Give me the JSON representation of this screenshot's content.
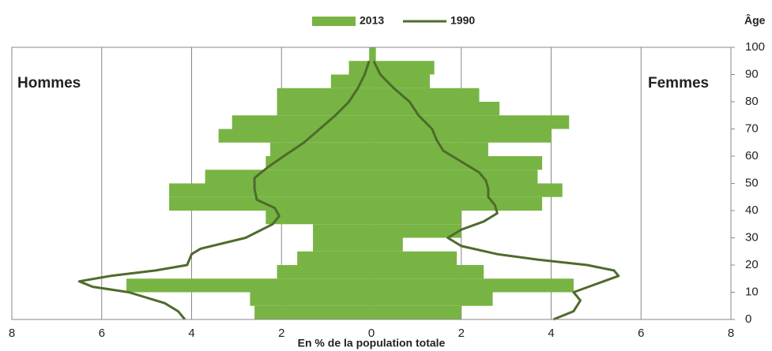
{
  "chart_data": {
    "type": "pyramid",
    "left_label": "Hommes",
    "right_label": "Femmes",
    "xlabel": "En % de la population totale",
    "ylabel": "Âge",
    "xlim": [
      -8,
      8
    ],
    "xticks": [
      {
        "value": -8,
        "label": "8"
      },
      {
        "value": -6,
        "label": "6"
      },
      {
        "value": -4,
        "label": "4"
      },
      {
        "value": -2,
        "label": "2"
      },
      0,
      2,
      4,
      6,
      8
    ],
    "ylim": [
      0,
      100
    ],
    "yticks": [
      0,
      10,
      20,
      30,
      40,
      50,
      60,
      70,
      80,
      90,
      100
    ],
    "grid": true,
    "bars": {
      "name": "2013",
      "color": "#78b444",
      "bins": [
        0,
        5,
        10,
        15,
        20,
        25,
        30,
        35,
        40,
        45,
        50,
        55,
        60,
        65,
        70,
        75,
        80,
        85,
        90,
        95,
        100
      ],
      "men": [
        -2.6,
        -2.7,
        -5.45,
        -2.1,
        -1.65,
        -1.3,
        -1.3,
        -2.35,
        -4.5,
        -4.5,
        -3.7,
        -2.35,
        -2.25,
        -3.4,
        -3.1,
        -2.1,
        -2.1,
        -0.9,
        -0.5,
        -0.05
      ],
      "women": [
        2.0,
        2.7,
        4.5,
        2.5,
        1.9,
        0.7,
        2.0,
        2.0,
        3.8,
        4.25,
        3.7,
        3.8,
        2.6,
        4.0,
        4.4,
        2.85,
        2.4,
        1.3,
        1.4,
        0.1
      ]
    },
    "line": {
      "name": "1990",
      "color": "#4e6b2c",
      "men_ages": [
        0,
        3,
        6,
        10,
        12,
        14,
        16,
        18,
        20,
        24,
        26,
        30,
        35,
        38,
        41,
        44,
        48,
        52,
        56,
        60,
        65,
        70,
        75,
        80,
        85,
        90,
        95
      ],
      "men": [
        -4.15,
        -4.3,
        -4.6,
        -5.4,
        -6.2,
        -6.5,
        -5.8,
        -4.8,
        -4.1,
        -4.0,
        -3.8,
        -2.8,
        -2.2,
        -2.05,
        -2.15,
        -2.55,
        -2.6,
        -2.6,
        -2.3,
        -1.95,
        -1.5,
        -1.15,
        -0.8,
        -0.5,
        -0.3,
        -0.15,
        -0.05
      ],
      "women_ages": [
        0,
        3,
        7,
        10,
        13,
        16,
        18,
        20,
        22,
        24,
        27,
        30,
        33,
        36,
        39,
        42,
        45,
        48,
        51,
        54,
        58,
        62,
        66,
        70,
        75,
        80,
        85,
        90,
        95
      ],
      "women": [
        4.05,
        4.5,
        4.65,
        4.5,
        5.0,
        5.5,
        5.4,
        4.8,
        3.7,
        2.8,
        2.0,
        1.7,
        2.0,
        2.5,
        2.8,
        2.75,
        2.6,
        2.6,
        2.55,
        2.4,
        2.0,
        1.6,
        1.45,
        1.35,
        1.05,
        0.85,
        0.5,
        0.2,
        0.05
      ]
    }
  }
}
